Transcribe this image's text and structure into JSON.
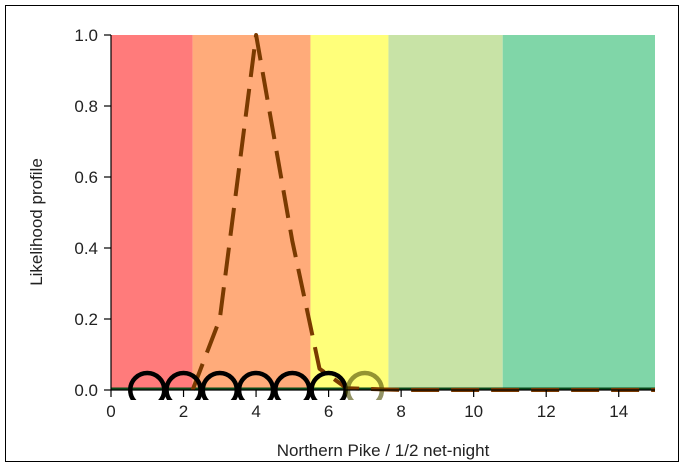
{
  "chart_data": {
    "type": "line",
    "xlabel": "Northern Pike / 1/2 net-night",
    "ylabel": "Likelihood profile",
    "xlim": [
      0,
      15
    ],
    "ylim": [
      0,
      1.0
    ],
    "x_ticks": [
      0,
      2,
      4,
      6,
      8,
      10,
      12,
      14
    ],
    "x_tick_labels": [
      "0",
      "2",
      "4",
      "6",
      "8",
      "10",
      "12",
      "14"
    ],
    "y_ticks": [
      0.0,
      0.2,
      0.4,
      0.6,
      0.8,
      1.0
    ],
    "y_tick_labels": [
      "0.0",
      "0.2",
      "0.4",
      "0.6",
      "0.8",
      "1.0"
    ],
    "grid": false,
    "background_bands": [
      {
        "from": 0,
        "to": 2.25,
        "color": "#ff7b7b"
      },
      {
        "from": 2.25,
        "to": 5.5,
        "color": "#ffab7a"
      },
      {
        "from": 5.5,
        "to": 7.65,
        "color": "#ffff7a"
      },
      {
        "from": 7.65,
        "to": 10.8,
        "color": "#c8e3a6"
      },
      {
        "from": 10.8,
        "to": 15,
        "color": "#80d6a8"
      }
    ],
    "series": [
      {
        "style": "dashed",
        "color": "#7a3a00",
        "x": [
          2.25,
          3.0,
          4.0,
          5.0,
          5.75,
          6.5,
          8,
          10,
          12,
          15
        ],
        "y": [
          0.0,
          0.2,
          1.0,
          0.42,
          0.06,
          0.005,
          0.0,
          0.0,
          0.0,
          0.0
        ]
      }
    ],
    "observations": {
      "marker": "open-circle",
      "points": [
        {
          "x": 1.0,
          "y": 0.0,
          "color": "#000000"
        },
        {
          "x": 2.0,
          "y": 0.0,
          "color": "#000000"
        },
        {
          "x": 3.0,
          "y": 0.0,
          "color": "#000000"
        },
        {
          "x": 4.0,
          "y": 0.0,
          "color": "#000000"
        },
        {
          "x": 5.0,
          "y": 0.0,
          "color": "#000000"
        },
        {
          "x": 6.0,
          "y": 0.0,
          "color": "#000000"
        },
        {
          "x": 7.0,
          "y": 0.0,
          "color": "#4d4d00"
        }
      ]
    },
    "baseline_color": "#0a4a1a"
  }
}
